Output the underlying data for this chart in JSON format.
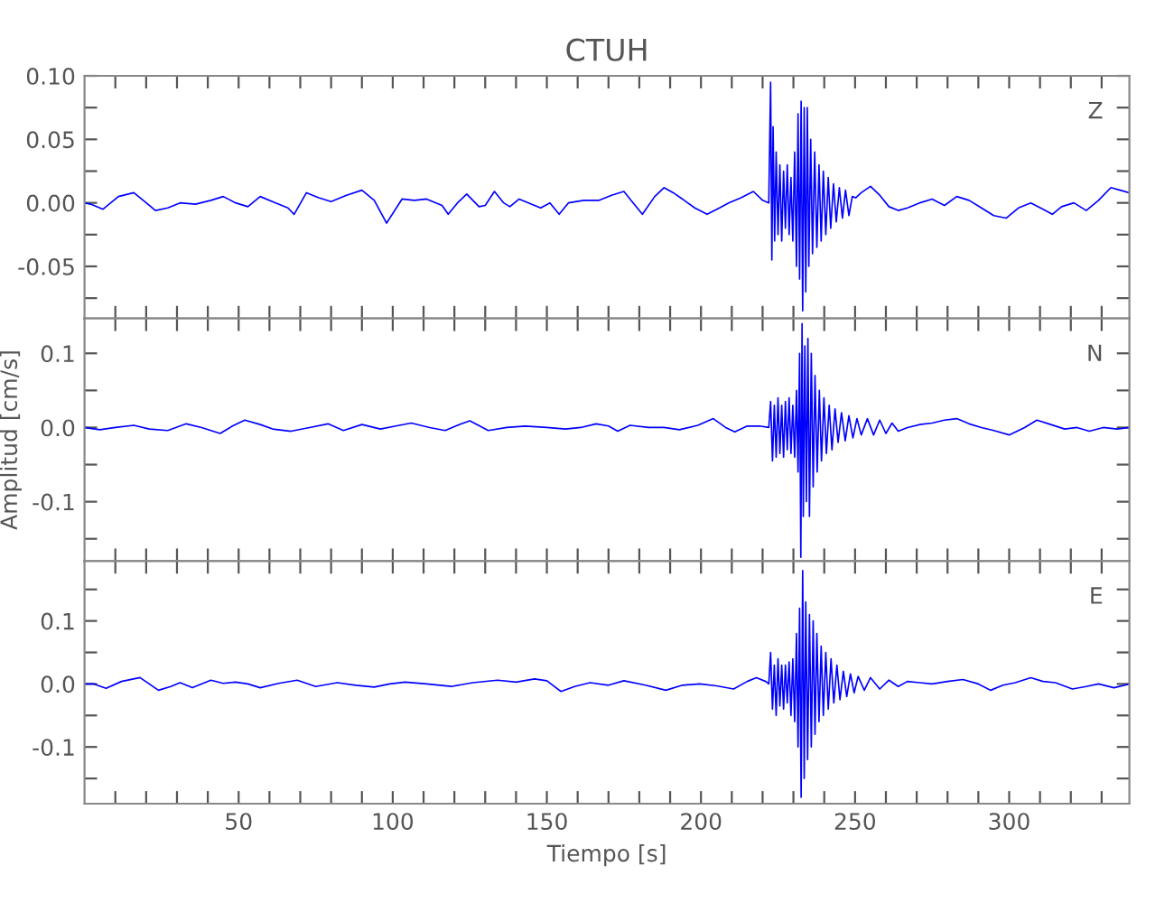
{
  "chart_data": [
    {
      "type": "line",
      "title": "CTUH",
      "annotations": [
        "Z"
      ],
      "color": "#0000ff",
      "xlim": [
        0,
        339
      ],
      "ylim": [
        -0.091,
        0.1
      ],
      "tick_labels": "y",
      "line_style": "solid",
      "xticks": [
        {
          "value": 10,
          "label": null
        },
        {
          "value": 20,
          "label": null
        },
        {
          "value": 30,
          "label": null
        },
        {
          "value": 40,
          "label": null
        },
        50,
        {
          "value": 60,
          "label": null
        },
        {
          "value": 70,
          "label": null
        },
        {
          "value": 80,
          "label": null
        },
        {
          "value": 90,
          "label": null
        },
        100,
        {
          "value": 110,
          "label": null
        },
        {
          "value": 120,
          "label": null
        },
        {
          "value": 130,
          "label": null
        },
        {
          "value": 140,
          "label": null
        },
        150,
        {
          "value": 160,
          "label": null
        },
        {
          "value": 170,
          "label": null
        },
        {
          "value": 180,
          "label": null
        },
        {
          "value": 190,
          "label": null
        },
        200,
        {
          "value": 210,
          "label": null
        },
        {
          "value": 220,
          "label": null
        },
        {
          "value": 230,
          "label": null
        },
        {
          "value": 240,
          "label": null
        },
        250,
        {
          "value": 260,
          "label": null
        },
        {
          "value": 270,
          "label": null
        },
        {
          "value": 280,
          "label": null
        },
        {
          "value": 290,
          "label": null
        },
        300,
        {
          "value": 310,
          "label": null
        },
        {
          "value": 320,
          "label": null
        },
        {
          "value": 330,
          "label": null
        }
      ],
      "yticks": [
        {
          "value": -0.075,
          "label": null
        },
        {
          "value": -0.05,
          "label": "-0.05"
        },
        {
          "value": -0.025,
          "label": null
        },
        {
          "value": 0,
          "label": "0.00"
        },
        {
          "value": 0.025,
          "label": null
        },
        {
          "value": 0.05,
          "label": "0.05"
        },
        {
          "value": 0.075,
          "label": null
        },
        {
          "value": 0.1,
          "label": "0.10"
        }
      ],
      "x": [
        0,
        2,
        6,
        11,
        16,
        21,
        23,
        27,
        31,
        36,
        41,
        45,
        49,
        53,
        57,
        62,
        66,
        68,
        72,
        76,
        80,
        85,
        90,
        94,
        98,
        103,
        107,
        111,
        116,
        118,
        121,
        124,
        128,
        130,
        133,
        136,
        138,
        141,
        143,
        146,
        148,
        151,
        154,
        157,
        162,
        167,
        171,
        175,
        178,
        181,
        185,
        188,
        191,
        194,
        198,
        202,
        206,
        209,
        213,
        217,
        220,
        222,
        222.6,
        223.0,
        223.4,
        223.9,
        224.4,
        225.0,
        225.6,
        226.2,
        226.8,
        227.4,
        228.0,
        228.6,
        229.2,
        229.8,
        230.4,
        231.0,
        231.5,
        232.0,
        232.5,
        233.0,
        233.5,
        234.0,
        234.5,
        235.0,
        235.6,
        236.2,
        236.9,
        237.6,
        238.3,
        239.0,
        239.7,
        240.5,
        241.3,
        242.1,
        243.0,
        243.9,
        244.9,
        245.9,
        246.9,
        248.0,
        249.1,
        250.2,
        252,
        255,
        258,
        261,
        264,
        267,
        271,
        275,
        279,
        283,
        287,
        291,
        295,
        299,
        303,
        307,
        311,
        314,
        317,
        321,
        325,
        329,
        333,
        336,
        339
      ],
      "values": [
        0.0,
        -0.001,
        -0.005,
        0.005,
        0.008,
        -0.002,
        -0.006,
        -0.004,
        0.0,
        -0.001,
        0.002,
        0.005,
        0.0,
        -0.003,
        0.005,
        0.0,
        -0.004,
        -0.009,
        0.008,
        0.004,
        0.001,
        0.006,
        0.01,
        0.002,
        -0.016,
        0.003,
        0.002,
        0.003,
        -0.002,
        -0.009,
        0.0,
        0.007,
        -0.003,
        -0.002,
        0.009,
        0.0,
        -0.003,
        0.003,
        0.001,
        -0.002,
        -0.004,
        0.0,
        -0.009,
        0.0,
        0.002,
        0.002,
        0.006,
        0.009,
        0.0,
        -0.009,
        0.005,
        0.012,
        0.008,
        0.003,
        -0.004,
        -0.009,
        -0.004,
        0.0,
        0.004,
        0.009,
        0.002,
        0.0,
        0.095,
        -0.045,
        0.06,
        -0.03,
        0.04,
        -0.025,
        0.03,
        -0.03,
        0.025,
        -0.02,
        0.03,
        -0.025,
        0.02,
        -0.03,
        0.04,
        -0.05,
        0.07,
        -0.06,
        0.08,
        -0.085,
        0.075,
        -0.07,
        0.075,
        -0.05,
        0.05,
        -0.04,
        0.04,
        -0.035,
        0.03,
        -0.03,
        0.025,
        -0.025,
        0.02,
        -0.02,
        0.015,
        -0.015,
        0.012,
        -0.012,
        0.01,
        -0.01,
        0.005,
        0.004,
        0.008,
        0.013,
        0.006,
        -0.003,
        -0.006,
        -0.004,
        0.0,
        0.003,
        -0.002,
        0.005,
        0.002,
        -0.004,
        -0.01,
        -0.012,
        -0.004,
        0.0,
        -0.005,
        -0.009,
        -0.003,
        0.0,
        -0.006,
        0.002,
        0.012,
        0.01,
        0.008
      ]
    },
    {
      "type": "line",
      "ylabel": "Amplitud [cm/s]",
      "annotations": [
        "N"
      ],
      "color": "#0000ff",
      "xlim": [
        0,
        339
      ],
      "ylim": [
        -0.18,
        0.147
      ],
      "tick_labels": "y",
      "line_style": "solid",
      "xticks": [
        {
          "value": 10,
          "label": null
        },
        {
          "value": 20,
          "label": null
        },
        {
          "value": 30,
          "label": null
        },
        {
          "value": 40,
          "label": null
        },
        50,
        {
          "value": 60,
          "label": null
        },
        {
          "value": 70,
          "label": null
        },
        {
          "value": 80,
          "label": null
        },
        {
          "value": 90,
          "label": null
        },
        100,
        {
          "value": 110,
          "label": null
        },
        {
          "value": 120,
          "label": null
        },
        {
          "value": 130,
          "label": null
        },
        {
          "value": 140,
          "label": null
        },
        150,
        {
          "value": 160,
          "label": null
        },
        {
          "value": 170,
          "label": null
        },
        {
          "value": 180,
          "label": null
        },
        {
          "value": 190,
          "label": null
        },
        200,
        {
          "value": 210,
          "label": null
        },
        {
          "value": 220,
          "label": null
        },
        {
          "value": 230,
          "label": null
        },
        {
          "value": 240,
          "label": null
        },
        250,
        {
          "value": 260,
          "label": null
        },
        {
          "value": 270,
          "label": null
        },
        {
          "value": 280,
          "label": null
        },
        {
          "value": 290,
          "label": null
        },
        300,
        {
          "value": 310,
          "label": null
        },
        {
          "value": 320,
          "label": null
        },
        {
          "value": 330,
          "label": null
        }
      ],
      "yticks": [
        {
          "value": -0.15,
          "label": null
        },
        {
          "value": -0.1,
          "label": "-0.1"
        },
        {
          "value": -0.05,
          "label": null
        },
        {
          "value": 0,
          "label": "0.0"
        },
        {
          "value": 0.05,
          "label": null
        },
        {
          "value": 0.1,
          "label": "0.1"
        }
      ],
      "x": [
        0,
        5,
        10,
        16,
        21,
        27,
        33,
        38,
        44,
        48,
        52,
        57,
        61,
        67,
        73,
        79,
        84,
        90,
        96,
        101,
        106,
        112,
        117,
        121,
        125,
        131,
        137,
        143,
        150,
        156,
        161,
        166,
        170,
        173,
        177,
        183,
        188,
        193,
        199,
        204,
        208,
        211,
        215,
        219,
        222,
        222.6,
        223.2,
        223.8,
        224.4,
        225.0,
        225.6,
        226.2,
        226.8,
        227.4,
        228.0,
        228.6,
        229.2,
        229.8,
        230.4,
        231.0,
        231.5,
        232.0,
        232.4,
        232.8,
        233.2,
        233.7,
        234.2,
        234.7,
        235.2,
        235.8,
        236.4,
        237.0,
        237.7,
        238.4,
        239.1,
        239.9,
        240.7,
        241.6,
        242.5,
        243.5,
        244.5,
        245.6,
        246.8,
        248.0,
        249.3,
        250.6,
        252,
        254,
        256,
        258,
        260,
        262,
        264,
        267,
        271,
        275,
        279,
        283,
        287,
        291,
        295,
        300,
        305,
        309,
        313.5,
        318,
        322,
        326,
        330.5,
        335,
        339
      ],
      "values": [
        0.0,
        -0.003,
        0.0,
        0.003,
        -0.002,
        -0.004,
        0.005,
        0.0,
        -0.008,
        0.002,
        0.01,
        0.004,
        -0.002,
        -0.005,
        0.0,
        0.005,
        -0.004,
        0.004,
        -0.002,
        0.002,
        0.006,
        0.0,
        -0.004,
        0.003,
        0.009,
        -0.004,
        0.0,
        0.002,
        0.0,
        -0.002,
        0.0,
        0.005,
        0.002,
        -0.005,
        0.003,
        0.0,
        0.0,
        -0.003,
        0.003,
        0.012,
        0.0,
        -0.006,
        0.002,
        0.002,
        0.0,
        0.035,
        -0.045,
        0.03,
        -0.04,
        0.04,
        -0.035,
        0.03,
        -0.04,
        0.035,
        -0.03,
        0.04,
        -0.035,
        0.03,
        -0.04,
        0.05,
        -0.06,
        0.1,
        -0.175,
        0.14,
        -0.12,
        0.11,
        -0.1,
        0.12,
        -0.12,
        0.1,
        -0.08,
        0.07,
        -0.06,
        0.05,
        -0.045,
        0.04,
        -0.035,
        0.03,
        -0.03,
        0.025,
        -0.02,
        0.02,
        -0.018,
        0.016,
        -0.014,
        0.012,
        -0.01,
        0.012,
        -0.01,
        0.01,
        -0.008,
        0.006,
        -0.005,
        0.0,
        0.004,
        0.006,
        0.01,
        0.012,
        0.005,
        0.0,
        -0.004,
        -0.01,
        0.0,
        0.01,
        0.004,
        -0.002,
        0.0,
        -0.005,
        0.0,
        -0.002,
        0.0
      ]
    },
    {
      "type": "line",
      "xlabel": "Tiempo [s]",
      "annotations": [
        "E"
      ],
      "color": "#0000ff",
      "xlim": [
        0,
        339
      ],
      "ylim": [
        -0.19,
        0.195
      ],
      "line_style": "solid",
      "xticks": [
        {
          "value": 10,
          "label": null
        },
        {
          "value": 20,
          "label": null
        },
        {
          "value": 30,
          "label": null
        },
        {
          "value": 40,
          "label": null
        },
        50,
        {
          "value": 60,
          "label": null
        },
        {
          "value": 70,
          "label": null
        },
        {
          "value": 80,
          "label": null
        },
        {
          "value": 90,
          "label": null
        },
        100,
        {
          "value": 110,
          "label": null
        },
        {
          "value": 120,
          "label": null
        },
        {
          "value": 130,
          "label": null
        },
        {
          "value": 140,
          "label": null
        },
        150,
        {
          "value": 160,
          "label": null
        },
        {
          "value": 170,
          "label": null
        },
        {
          "value": 180,
          "label": null
        },
        {
          "value": 190,
          "label": null
        },
        200,
        {
          "value": 210,
          "label": null
        },
        {
          "value": 220,
          "label": null
        },
        {
          "value": 230,
          "label": null
        },
        {
          "value": 240,
          "label": null
        },
        250,
        {
          "value": 260,
          "label": null
        },
        {
          "value": 270,
          "label": null
        },
        {
          "value": 280,
          "label": null
        },
        {
          "value": 290,
          "label": null
        },
        300,
        {
          "value": 310,
          "label": null
        },
        {
          "value": 320,
          "label": null
        },
        {
          "value": 330,
          "label": null
        }
      ],
      "yticks": [
        {
          "value": -0.15,
          "label": null
        },
        {
          "value": -0.1,
          "label": "-0.1"
        },
        {
          "value": -0.05,
          "label": null
        },
        {
          "value": 0,
          "label": "0.0"
        },
        {
          "value": 0.05,
          "label": null
        },
        {
          "value": 0.1,
          "label": "0.1"
        },
        {
          "value": 0.15,
          "label": null
        }
      ],
      "x": [
        0,
        3,
        7,
        12,
        18,
        24,
        28,
        31,
        35,
        41,
        45,
        49,
        53,
        57,
        63,
        69,
        75,
        82,
        88,
        94,
        99,
        104,
        111,
        119,
        126,
        134,
        140,
        146,
        150,
        154.6,
        159,
        164,
        170,
        175,
        182,
        188.6,
        194,
        199.6,
        205,
        210.6,
        215,
        218,
        221,
        222,
        222.6,
        223.2,
        223.8,
        224.4,
        225.0,
        225.6,
        226.2,
        226.8,
        227.4,
        228.0,
        228.6,
        229.2,
        229.8,
        230.4,
        231.0,
        231.5,
        232.0,
        232.5,
        233.0,
        233.5,
        234.0,
        234.6,
        235.2,
        235.8,
        236.4,
        237.0,
        237.6,
        238.3,
        239.0,
        239.7,
        240.5,
        241.3,
        242.2,
        243.1,
        244.1,
        245.1,
        246.2,
        247.3,
        248.5,
        249.7,
        251,
        253,
        255,
        258,
        261,
        264,
        267,
        271,
        275,
        280,
        285,
        290,
        294,
        298,
        302,
        307,
        311,
        315,
        320.5,
        325,
        329,
        334,
        339
      ],
      "values": [
        0.0,
        0.0,
        -0.007,
        0.004,
        0.01,
        -0.01,
        -0.004,
        0.002,
        -0.006,
        0.006,
        0.001,
        0.003,
        0.0,
        -0.006,
        0.001,
        0.006,
        -0.004,
        0.002,
        -0.002,
        -0.005,
        0.0,
        0.003,
        0.0,
        -0.004,
        0.002,
        0.006,
        0.003,
        0.008,
        0.005,
        -0.012,
        -0.004,
        0.002,
        -0.002,
        0.005,
        -0.002,
        -0.01,
        -0.002,
        0.0,
        -0.003,
        -0.008,
        0.004,
        0.01,
        0.004,
        0.0,
        0.05,
        -0.04,
        0.03,
        -0.05,
        0.04,
        -0.035,
        0.03,
        -0.04,
        0.03,
        -0.03,
        0.035,
        -0.05,
        0.04,
        -0.06,
        0.08,
        -0.1,
        0.12,
        -0.18,
        0.18,
        -0.15,
        0.13,
        -0.12,
        0.11,
        -0.1,
        0.1,
        -0.08,
        0.08,
        -0.06,
        0.06,
        -0.05,
        0.05,
        -0.04,
        0.04,
        -0.03,
        0.03,
        -0.025,
        0.02,
        -0.02,
        0.016,
        -0.014,
        0.012,
        -0.01,
        0.01,
        -0.008,
        0.006,
        -0.004,
        0.004,
        0.002,
        0.0,
        0.004,
        0.007,
        0.0,
        -0.01,
        -0.002,
        0.002,
        0.01,
        0.004,
        0.002,
        -0.008,
        -0.004,
        0.0,
        -0.006,
        0.0
      ]
    }
  ]
}
